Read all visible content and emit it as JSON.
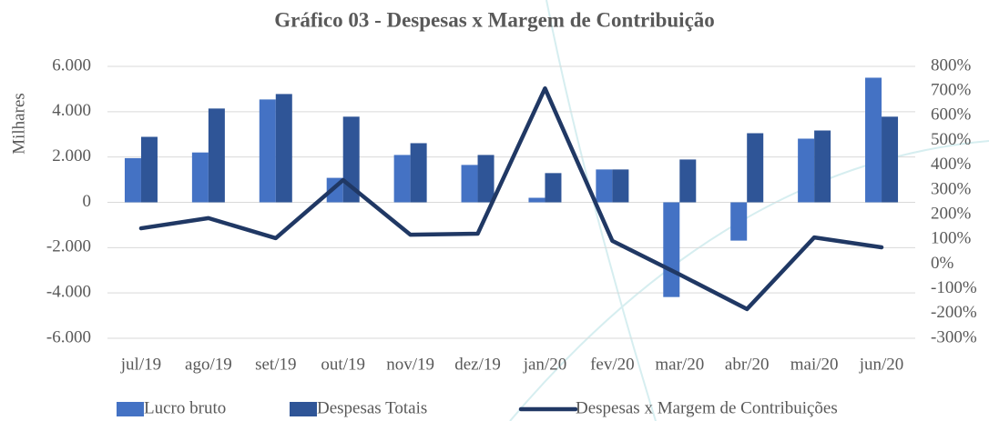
{
  "chart_data": {
    "type": "bar_line",
    "title": "Gráfico 03 - Despesas x Margem de Contribuição",
    "ylabel": "Milhares",
    "categories": [
      "jul/19",
      "ago/19",
      "set/19",
      "out/19",
      "nov/19",
      "dez/19",
      "jan/20",
      "fev/20",
      "mar/20",
      "abr/20",
      "mai/20",
      "jun/20"
    ],
    "series": [
      {
        "name": "Lucro bruto",
        "color": "#4472c4",
        "kind": "bar",
        "values": [
          1950,
          2200,
          4540,
          1080,
          2090,
          1650,
          200,
          1450,
          -4180,
          -1690,
          2810,
          5500
        ]
      },
      {
        "name": "Despesas Totais",
        "color": "#2f5597",
        "kind": "bar",
        "values": [
          2890,
          4140,
          4780,
          3780,
          2610,
          2090,
          1290,
          1450,
          1890,
          3050,
          3170,
          3780
        ]
      },
      {
        "name": "Despesas x Margem de Contribuições",
        "color": "#203864",
        "kind": "line",
        "axis": "y2",
        "values": [
          145,
          186,
          105,
          340,
          119,
          123,
          711,
          94,
          -42,
          -182,
          108,
          68
        ]
      }
    ],
    "ylim": [
      -6000,
      6000
    ],
    "yticks": [
      {
        "value": -6000,
        "label": "-6.000"
      },
      {
        "value": -4000,
        "label": "-4.000"
      },
      {
        "value": -2000,
        "label": "-2.000"
      },
      0,
      {
        "value": 2000,
        "label": "2.000"
      },
      {
        "value": 4000,
        "label": "4.000"
      },
      {
        "value": 6000,
        "label": "6.000"
      }
    ],
    "y2lim": [
      -300,
      800
    ],
    "y2ticks": [
      {
        "value": -300,
        "label": "-300%"
      },
      {
        "value": -200,
        "label": "-200%"
      },
      {
        "value": -100,
        "label": "-100%"
      },
      {
        "value": 0,
        "label": "0%"
      },
      {
        "value": 100,
        "label": "100%"
      },
      {
        "value": 200,
        "label": "200%"
      },
      {
        "value": 300,
        "label": "300%"
      },
      {
        "value": 400,
        "label": "400%"
      },
      {
        "value": 500,
        "label": "500%"
      },
      {
        "value": 600,
        "label": "600%"
      },
      {
        "value": 700,
        "label": "700%"
      },
      {
        "value": 800,
        "label": "800%"
      }
    ],
    "grid": true
  }
}
